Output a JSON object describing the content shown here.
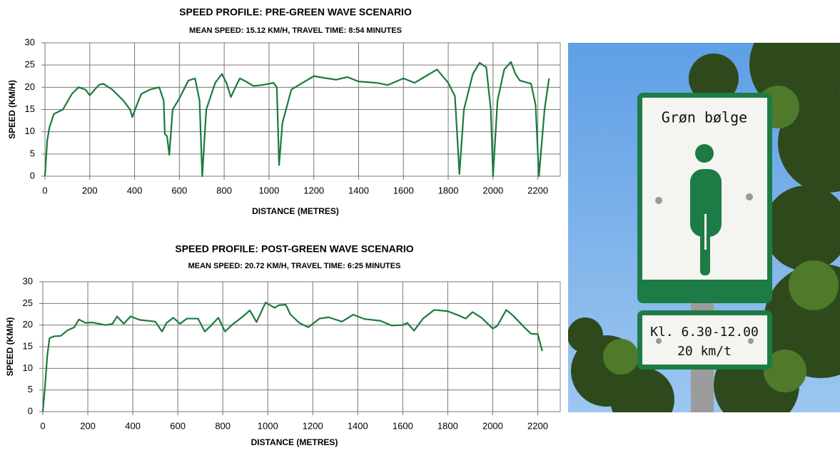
{
  "chart_data": [
    {
      "type": "line",
      "title": "SPEED PROFILE: PRE-GREEN WAVE SCENARIO",
      "subtitle": "MEAN SPEED: 15.12 KM/H, TRAVEL TIME: 8:54 MINUTES",
      "x_label": "DISTANCE (METRES)",
      "y_label": "SPEED (KM/H)",
      "x": [
        0,
        10,
        20,
        40,
        80,
        120,
        150,
        180,
        200,
        240,
        260,
        300,
        350,
        380,
        390,
        410,
        430,
        470,
        510,
        530,
        535,
        545,
        555,
        570,
        600,
        640,
        670,
        690,
        702,
        720,
        760,
        790,
        810,
        830,
        850,
        870,
        890,
        930,
        970,
        1020,
        1035,
        1045,
        1060,
        1100,
        1150,
        1200,
        1260,
        1300,
        1350,
        1400,
        1480,
        1530,
        1600,
        1650,
        1700,
        1750,
        1800,
        1830,
        1850,
        1870,
        1910,
        1940,
        1970,
        1990,
        2000,
        2020,
        2050,
        2080,
        2100,
        2120,
        2170,
        2190,
        2205,
        2230,
        2250
      ],
      "values": [
        0,
        8,
        11,
        14,
        15,
        18.5,
        20,
        19.5,
        18.2,
        20.5,
        20.8,
        19.5,
        17,
        15,
        13.3,
        16,
        18.5,
        19.5,
        20,
        17,
        9.5,
        9,
        4.8,
        15,
        17.5,
        21.5,
        22,
        17,
        0,
        15,
        21,
        23,
        21,
        17.8,
        20,
        22,
        21.5,
        20.3,
        20.5,
        21,
        20,
        2.5,
        12,
        19.5,
        21,
        22.5,
        22,
        21.7,
        22.3,
        21.3,
        21,
        20.5,
        22,
        21,
        22.5,
        24,
        21,
        18,
        0.5,
        15,
        23,
        25.5,
        24.5,
        15,
        0,
        17,
        24,
        25.7,
        23,
        21.5,
        20.8,
        16,
        0,
        15,
        22
      ],
      "color": "#1b7a3c",
      "xlim": [
        0,
        2300
      ],
      "xticks": [
        0,
        200,
        400,
        600,
        800,
        1000,
        1200,
        1400,
        1600,
        1800,
        2000,
        2200
      ],
      "ylim": [
        0,
        30
      ],
      "yticks": [
        0,
        5,
        10,
        15,
        20,
        25,
        30
      ],
      "grid": true
    },
    {
      "type": "line",
      "title": "SPEED PROFILE: POST-GREEN WAVE SCENARIO",
      "subtitle": "MEAN SPEED: 20.72 KM/H, TRAVEL TIME: 6:25 MINUTES",
      "x_label": "DISTANCE (METRES)",
      "y_label": "SPEED (KM/H)",
      "x": [
        0,
        10,
        20,
        30,
        50,
        80,
        110,
        140,
        160,
        190,
        220,
        280,
        310,
        330,
        360,
        390,
        430,
        500,
        530,
        550,
        580,
        610,
        640,
        690,
        720,
        750,
        780,
        810,
        840,
        890,
        920,
        950,
        990,
        1030,
        1050,
        1080,
        1100,
        1140,
        1180,
        1230,
        1270,
        1330,
        1380,
        1430,
        1500,
        1550,
        1600,
        1620,
        1650,
        1690,
        1740,
        1800,
        1850,
        1880,
        1910,
        1950,
        2000,
        2020,
        2060,
        2090,
        2140,
        2170,
        2200,
        2220
      ],
      "values": [
        0,
        6,
        13,
        17,
        17.4,
        17.5,
        18.8,
        19.5,
        21.3,
        20.5,
        20.6,
        20,
        20.3,
        22,
        20.3,
        22,
        21.2,
        20.8,
        18.5,
        20.5,
        21.7,
        20.3,
        21.5,
        21.5,
        18.5,
        20,
        21.7,
        18.5,
        20,
        22,
        23.4,
        20.7,
        25.2,
        24,
        24.6,
        24.7,
        22.5,
        20.5,
        19.5,
        21.5,
        21.8,
        20.8,
        22.4,
        21.4,
        21,
        19.9,
        20,
        20.5,
        18.7,
        21.5,
        23.5,
        23.2,
        22.2,
        21.5,
        23,
        21.7,
        19.2,
        19.8,
        23.5,
        22.2,
        19.5,
        18,
        17.9,
        14
      ],
      "color": "#1b7a3c",
      "xlim": [
        0,
        2300
      ],
      "xticks": [
        0,
        200,
        400,
        600,
        800,
        1000,
        1200,
        1400,
        1600,
        1800,
        2000,
        2200
      ],
      "ylim": [
        0,
        30
      ],
      "yticks": [
        0,
        5,
        10,
        15,
        20,
        25,
        30
      ],
      "grid": true
    }
  ],
  "photo": {
    "sign_title": "Grøn bølge",
    "sign_hours": "Kl. 6.30-12.00",
    "sign_speed": "20 km/t"
  }
}
